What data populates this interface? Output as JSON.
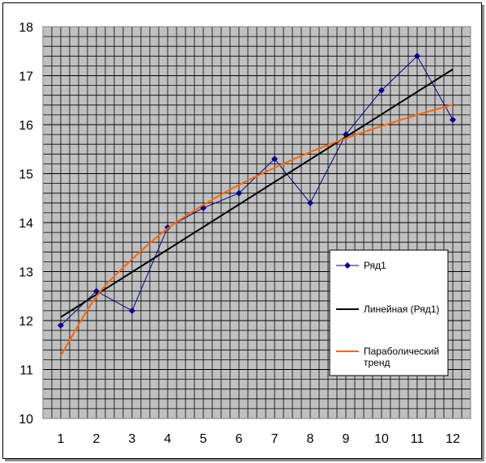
{
  "chart_data": {
    "type": "line",
    "title": "",
    "xlabel": "",
    "ylabel": "",
    "x": [
      1,
      2,
      3,
      4,
      5,
      6,
      7,
      8,
      9,
      10,
      11,
      12
    ],
    "xlim": [
      0.5,
      12.5
    ],
    "ylim": [
      10,
      18
    ],
    "ytick_labels": [
      "10",
      "11",
      "12",
      "13",
      "14",
      "15",
      "16",
      "17",
      "18"
    ],
    "xtick_labels": [
      "1",
      "2",
      "3",
      "4",
      "5",
      "6",
      "7",
      "8",
      "9",
      "10",
      "11",
      "12"
    ],
    "grid": true,
    "plot_background": "#c0c0c0",
    "grid_color": "#000000",
    "legend_position": "right",
    "series": [
      {
        "name": "Ряд1",
        "kind": "line-markers",
        "color": "#00008b",
        "values": [
          11.9,
          12.6,
          12.2,
          13.9,
          14.3,
          14.6,
          15.3,
          14.4,
          15.8,
          16.7,
          17.4,
          16.1
        ]
      },
      {
        "name": "Линейная (Ряд1)",
        "kind": "trend-line",
        "color": "#000000",
        "values": [
          12.07,
          12.53,
          12.99,
          13.45,
          13.91,
          14.37,
          14.83,
          15.29,
          15.75,
          16.21,
          16.67,
          17.13
        ]
      },
      {
        "name": "Параболический тренд",
        "kind": "trend-curve",
        "color": "#ff6600",
        "values": [
          11.28,
          12.49,
          13.25,
          13.88,
          14.36,
          14.77,
          15.12,
          15.44,
          15.72,
          15.97,
          16.2,
          16.41
        ]
      }
    ]
  }
}
